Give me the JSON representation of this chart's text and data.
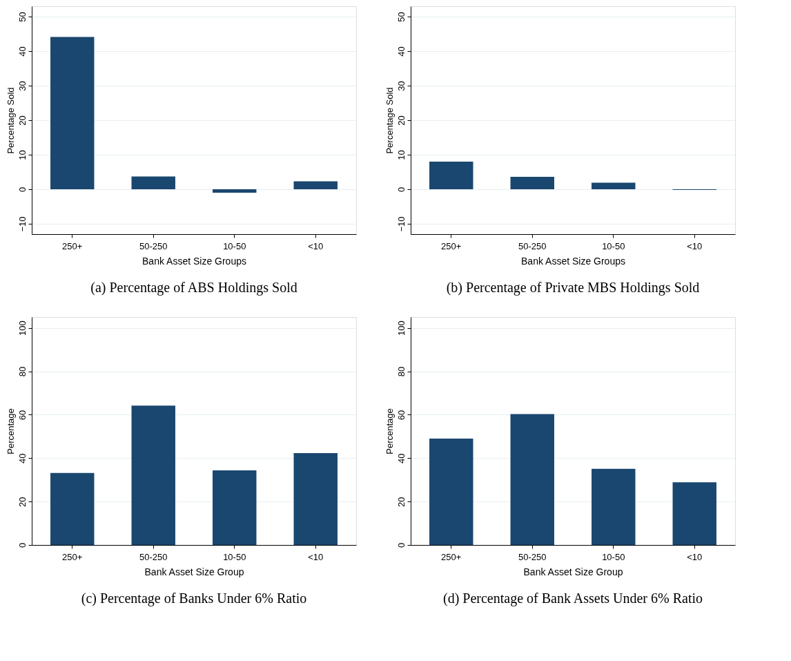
{
  "chart_data": [
    {
      "type": "bar",
      "title": "(a)  Percentage of ABS Holdings Sold",
      "xlabel": "Bank Asset Size Groups",
      "ylabel": "Percentage Sold",
      "categories": [
        "250+",
        "50-250",
        "10-50",
        "<10"
      ],
      "values": [
        44.1,
        3.7,
        -1.0,
        2.3
      ],
      "color": "#1a476f",
      "ylim": [
        -13,
        53
      ],
      "yticks": [
        -10,
        0,
        10,
        20,
        30,
        40,
        50
      ],
      "grid": "y"
    },
    {
      "type": "bar",
      "title": "(b)  Percentage of Private MBS Holdings Sold",
      "xlabel": "Bank Asset Size Groups",
      "ylabel": "Percentage Sold",
      "categories": [
        "250+",
        "50-250",
        "10-50",
        "<10"
      ],
      "values": [
        8.0,
        3.6,
        1.9,
        -0.2
      ],
      "color": "#1a476f",
      "ylim": [
        -13,
        53
      ],
      "yticks": [
        -10,
        0,
        10,
        20,
        30,
        40,
        50
      ],
      "grid": "y"
    },
    {
      "type": "bar",
      "title": "(c)  Percentage of Banks Under 6% Ratio",
      "xlabel": "Bank Asset Size Group",
      "ylabel": "Percentage",
      "categories": [
        "250+",
        "50-250",
        "10-50",
        "<10"
      ],
      "values": [
        33.2,
        64.2,
        34.4,
        42.3
      ],
      "color": "#1a476f",
      "ylim": [
        0,
        105
      ],
      "yticks": [
        0,
        20,
        40,
        60,
        80,
        100
      ],
      "grid": "y"
    },
    {
      "type": "bar",
      "title": "(d)  Percentage of Bank Assets Under 6% Ratio",
      "xlabel": "Bank Asset Size Group",
      "ylabel": "Percentage",
      "categories": [
        "250+",
        "50-250",
        "10-50",
        "<10"
      ],
      "values": [
        49.0,
        60.3,
        35.1,
        28.9
      ],
      "color": "#1a476f",
      "ylim": [
        0,
        105
      ],
      "yticks": [
        0,
        20,
        40,
        60,
        80,
        100
      ],
      "grid": "y"
    }
  ]
}
